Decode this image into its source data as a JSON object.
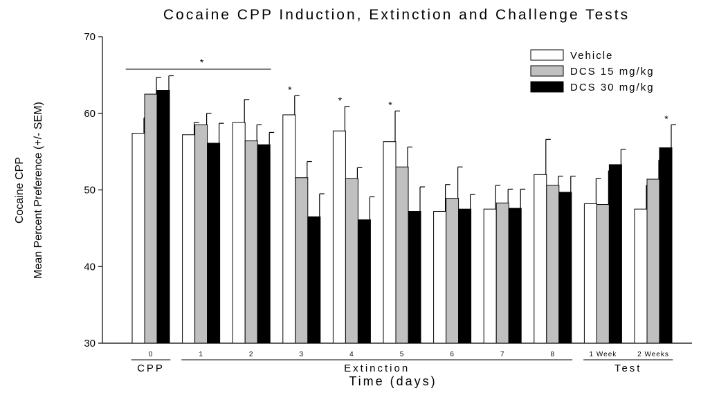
{
  "chart_data": {
    "type": "bar",
    "title": "Cocaine CPP Induction, Extinction and Challenge Tests",
    "xlabel": "Time (days)",
    "ylabel_lines": [
      "Cocaine CPP",
      "Mean Percent Preference (+/- SEM)"
    ],
    "ylim": [
      30,
      70
    ],
    "yticks": [
      30,
      40,
      50,
      60,
      70
    ],
    "categories": [
      "0",
      "1",
      "2",
      "3",
      "4",
      "5",
      "6",
      "7",
      "8",
      "1 Week",
      "2 Weeks"
    ],
    "groups": [
      {
        "label": "CPP",
        "from": 0,
        "to": 0
      },
      {
        "label": "Extinction",
        "from": 1,
        "to": 8
      },
      {
        "label": "Test",
        "from": 9,
        "to": 10
      }
    ],
    "series": [
      {
        "name": "Vehicle",
        "color": "#ffffff",
        "values": [
          57.4,
          57.2,
          58.8,
          59.8,
          57.7,
          56.3,
          47.2,
          47.5,
          52.0,
          48.2,
          47.5
        ],
        "errors": [
          2.0,
          1.6,
          3.0,
          2.5,
          3.2,
          4.0,
          3.5,
          3.1,
          4.6,
          3.3,
          3.1
        ]
      },
      {
        "name": "DCS 15 mg/kg",
        "color": "#c0c0c0",
        "values": [
          62.5,
          58.5,
          56.4,
          51.6,
          51.5,
          53.0,
          48.9,
          48.3,
          50.6,
          48.1,
          51.4
        ],
        "errors": [
          2.2,
          1.5,
          2.1,
          2.1,
          1.4,
          2.6,
          4.1,
          1.8,
          1.2,
          4.4,
          2.5
        ]
      },
      {
        "name": "DCS 30 mg/kg",
        "color": "#000000",
        "values": [
          63.0,
          56.1,
          55.9,
          46.5,
          46.1,
          47.2,
          47.5,
          47.6,
          49.7,
          53.3,
          55.5
        ],
        "errors": [
          1.9,
          2.6,
          1.6,
          3.0,
          3.0,
          3.2,
          1.9,
          2.5,
          2.1,
          2.0,
          3.0
        ]
      }
    ],
    "significance": {
      "bracket": {
        "from": 0,
        "to": 2,
        "label": "*"
      },
      "markers": [
        {
          "category": 3,
          "series": 0,
          "label": "*"
        },
        {
          "category": 4,
          "series": 0,
          "label": "*"
        },
        {
          "category": 5,
          "series": 0,
          "label": "*"
        },
        {
          "category": 10,
          "series": 2,
          "label": "*"
        }
      ]
    },
    "legend": {
      "position": "top-right"
    },
    "grid": false
  }
}
